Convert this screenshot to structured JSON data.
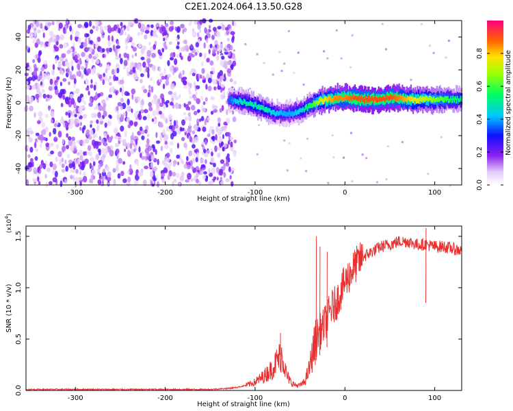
{
  "chart_data": [
    {
      "type": "heatmap",
      "title": "C2E1.2024.064.13.50.G28",
      "xlabel": "Height of straight line (km)",
      "ylabel": "Frequency (Hz)",
      "xlim": [
        -355,
        130
      ],
      "ylim": [
        -50,
        50
      ],
      "xticks": [
        "-300",
        "-200",
        "-100",
        "0",
        "100"
      ],
      "yticks": [
        "-40",
        "-20",
        "0",
        "20",
        "40"
      ],
      "colorbar": {
        "label": "Normalized spectral amplitude",
        "range": [
          0,
          1
        ],
        "ticks": [
          "0.0",
          "0.2",
          "0.4",
          "0.6",
          "0.8"
        ]
      },
      "ridge": {
        "x": [
          -130,
          -120,
          -110,
          -100,
          -90,
          -80,
          -70,
          -60,
          -50,
          -40,
          -30,
          -20,
          -10,
          0,
          10,
          20,
          30,
          40,
          50,
          60,
          70,
          80,
          90,
          100,
          110,
          120,
          130
        ],
        "y": [
          2,
          1,
          0,
          -2,
          -4,
          -6,
          -7,
          -6,
          -5,
          -2,
          1,
          2,
          3,
          3,
          3,
          2,
          2,
          2,
          3,
          3,
          2,
          2,
          2,
          2,
          2,
          2,
          2
        ],
        "amplitude": [
          0.35,
          0.45,
          0.5,
          0.5,
          0.5,
          0.45,
          0.4,
          0.4,
          0.45,
          0.55,
          0.7,
          0.8,
          0.85,
          0.85,
          0.9,
          0.9,
          0.9,
          0.9,
          0.9,
          0.85,
          0.8,
          0.75,
          0.7,
          0.65,
          0.6,
          0.55,
          0.5
        ]
      },
      "noise_region": {
        "x": [
          -355,
          -130
        ],
        "amplitude": [
          0.05,
          0.25
        ]
      }
    },
    {
      "type": "line",
      "xlabel": "Height of straight line (km)",
      "ylabel": "SNR (10 * v/v)",
      "scale_label": "(x10^4)",
      "xlim": [
        -355,
        130
      ],
      "ylim": [
        0,
        1.6
      ],
      "xticks": [
        "-300",
        "-200",
        "-100",
        "0",
        "100"
      ],
      "yticks": [
        "0.0",
        "0.5",
        "1.0",
        "1.5"
      ],
      "series": [
        {
          "x": [
            -355,
            -300,
            -250,
            -200,
            -150,
            -130,
            -120,
            -110,
            -100,
            -90,
            -80,
            -75,
            -70,
            -65,
            -60,
            -55,
            -50,
            -45,
            -40,
            -35,
            -30,
            -25,
            -20,
            -15,
            -10,
            -5,
            0,
            10,
            20,
            30,
            40,
            50,
            60,
            70,
            80,
            90,
            100,
            110,
            120,
            130
          ],
          "y": [
            0.01,
            0.01,
            0.01,
            0.01,
            0.01,
            0.02,
            0.03,
            0.05,
            0.08,
            0.14,
            0.22,
            0.3,
            0.35,
            0.15,
            0.08,
            0.05,
            0.05,
            0.08,
            0.2,
            0.4,
            0.55,
            0.6,
            0.7,
            0.8,
            0.85,
            0.95,
            1.05,
            1.2,
            1.3,
            1.35,
            1.4,
            1.42,
            1.45,
            1.45,
            1.42,
            1.42,
            1.4,
            1.4,
            1.38,
            1.36
          ],
          "color": "#e83030"
        }
      ],
      "peaks": {
        "x": [
          -72,
          -32,
          -28,
          -20,
          90
        ],
        "y": [
          0.56,
          1.5,
          1.4,
          1.35,
          1.58
        ]
      }
    }
  ]
}
